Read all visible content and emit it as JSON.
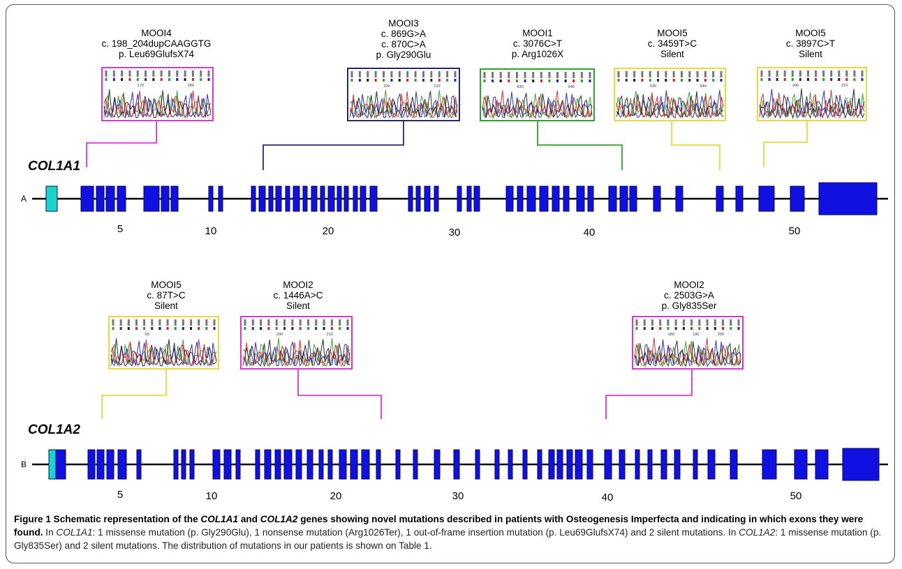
{
  "colors": {
    "exon_fill": "#1010e0",
    "exon_stroke": "#0a0a55",
    "utr_fill": "#19d3cf",
    "pink": "#dd33dd",
    "navy": "#28286e",
    "green": "#2aa52a",
    "yellow": "#ecd83c"
  },
  "panels": {
    "a": {
      "letter": "A",
      "gene": "COL1A1",
      "scale": [
        "5",
        "10",
        "20",
        "30",
        "40",
        "50"
      ],
      "mutations": [
        {
          "lines": [
            "MOOI4",
            "c. 198_204dupCAAGGTG",
            "p. Leu69GlufsX74"
          ],
          "color": "pink",
          "tracks": [
            "170",
            "180"
          ]
        },
        {
          "lines": [
            "MOOI3",
            "c. 869G>A",
            "c. 870C>A",
            "p. Gly290Glu"
          ],
          "color": "navy",
          "tracks": [
            "200",
            "210"
          ]
        },
        {
          "lines": [
            "MOOI1",
            "c. 3076C>T",
            "p. Arg1026X"
          ],
          "color": "green",
          "tracks": [
            "630",
            "640"
          ]
        },
        {
          "lines": [
            "MOOI5",
            "c. 3459T>C",
            "Silent"
          ],
          "color": "yellow",
          "tracks": [
            "530",
            "540"
          ]
        },
        {
          "lines": [
            "MOOI5",
            "c. 3897C>T",
            "Silent"
          ],
          "color": "yellow",
          "tracks": [
            "206",
            "210"
          ]
        }
      ]
    },
    "b": {
      "letter": "B",
      "gene": "COL1A2",
      "scale": [
        "5",
        "10",
        "20",
        "30",
        "40",
        "50"
      ],
      "mutations": [
        {
          "lines": [
            "MOOI5",
            "c. 87T>C",
            "Silent"
          ],
          "color": "yellow",
          "tracks": [
            "55"
          ]
        },
        {
          "lines": [
            "MOOI2",
            "c. 1446A>C",
            "Silent"
          ],
          "color": "pink",
          "tracks": [
            "200",
            "210"
          ]
        },
        {
          "lines": [
            "MOOI2",
            "c. 2503G>A",
            "p. Gly835Ser"
          ],
          "color": "pink",
          "tracks": [
            "180",
            "190",
            "200"
          ]
        }
      ]
    }
  },
  "caption": {
    "title_1": "Figure 1 Schematic representation of the ",
    "title_gene_1": "COL1A1",
    "title_2": " and ",
    "title_gene_2": "COL1A2",
    "title_3": " genes showing novel mutations described in patients with Osteogenesis Imperfecta and indicating in which exons they were found.",
    "text_1": " In ",
    "text_gene_1": "COL1A1",
    "text_2": ": 1 missense mutation (p. Gly290Glu), 1 nonsense mutation (Arg1026Ter), 1 out-of-frame insertion mutation (p. Leu69GlufsX74) and 2 silent mutations. In ",
    "text_gene_2": "COL1A2",
    "text_3": ": 1 missense mutation (p. Gly835Ser) and 2 silent mutations. The distribution of mutations in our patients is shown on Table 1."
  }
}
